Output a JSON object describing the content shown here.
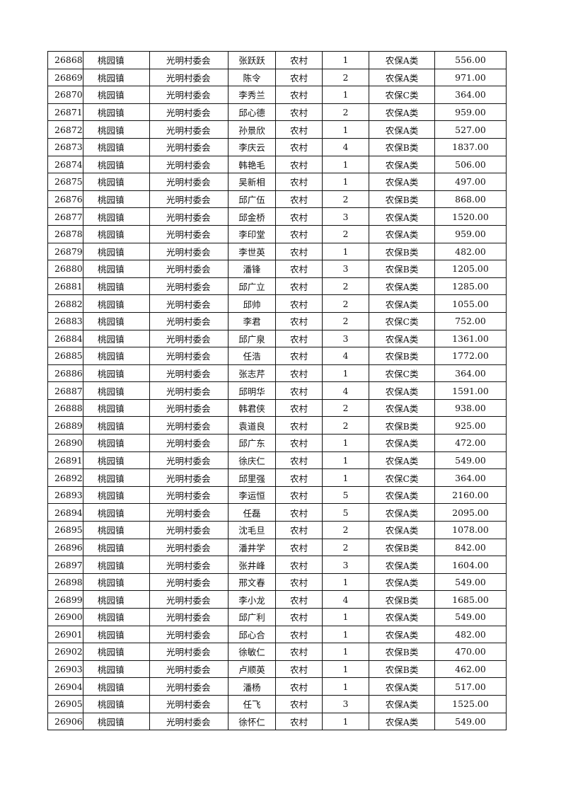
{
  "columns": [
    "id",
    "town",
    "committee",
    "name",
    "type",
    "persons",
    "category",
    "amount"
  ],
  "rows": [
    [
      "26868",
      "桃园镇",
      "光明村委会",
      "张跃跃",
      "农村",
      "1",
      "农保A类",
      "556.00"
    ],
    [
      "26869",
      "桃园镇",
      "光明村委会",
      "陈令",
      "农村",
      "2",
      "农保A类",
      "971.00"
    ],
    [
      "26870",
      "桃园镇",
      "光明村委会",
      "李秀兰",
      "农村",
      "1",
      "农保C类",
      "364.00"
    ],
    [
      "26871",
      "桃园镇",
      "光明村委会",
      "邱心德",
      "农村",
      "2",
      "农保A类",
      "959.00"
    ],
    [
      "26872",
      "桃园镇",
      "光明村委会",
      "孙景欣",
      "农村",
      "1",
      "农保A类",
      "527.00"
    ],
    [
      "26873",
      "桃园镇",
      "光明村委会",
      "李庆云",
      "农村",
      "4",
      "农保B类",
      "1837.00"
    ],
    [
      "26874",
      "桃园镇",
      "光明村委会",
      "韩艳毛",
      "农村",
      "1",
      "农保A类",
      "506.00"
    ],
    [
      "26875",
      "桃园镇",
      "光明村委会",
      "吴新相",
      "农村",
      "1",
      "农保A类",
      "497.00"
    ],
    [
      "26876",
      "桃园镇",
      "光明村委会",
      "邱广伍",
      "农村",
      "2",
      "农保B类",
      "868.00"
    ],
    [
      "26877",
      "桃园镇",
      "光明村委会",
      "邱金桥",
      "农村",
      "3",
      "农保A类",
      "1520.00"
    ],
    [
      "26878",
      "桃园镇",
      "光明村委会",
      "李印堂",
      "农村",
      "2",
      "农保A类",
      "959.00"
    ],
    [
      "26879",
      "桃园镇",
      "光明村委会",
      "李世英",
      "农村",
      "1",
      "农保B类",
      "482.00"
    ],
    [
      "26880",
      "桃园镇",
      "光明村委会",
      "潘锋",
      "农村",
      "3",
      "农保B类",
      "1205.00"
    ],
    [
      "26881",
      "桃园镇",
      "光明村委会",
      "邱广立",
      "农村",
      "2",
      "农保A类",
      "1285.00"
    ],
    [
      "26882",
      "桃园镇",
      "光明村委会",
      "邱帅",
      "农村",
      "2",
      "农保A类",
      "1055.00"
    ],
    [
      "26883",
      "桃园镇",
      "光明村委会",
      "李君",
      "农村",
      "2",
      "农保C类",
      "752.00"
    ],
    [
      "26884",
      "桃园镇",
      "光明村委会",
      "邱广泉",
      "农村",
      "3",
      "农保A类",
      "1361.00"
    ],
    [
      "26885",
      "桃园镇",
      "光明村委会",
      "任浩",
      "农村",
      "4",
      "农保B类",
      "1772.00"
    ],
    [
      "26886",
      "桃园镇",
      "光明村委会",
      "张志芹",
      "农村",
      "1",
      "农保C类",
      "364.00"
    ],
    [
      "26887",
      "桃园镇",
      "光明村委会",
      "邱明华",
      "农村",
      "4",
      "农保A类",
      "1591.00"
    ],
    [
      "26888",
      "桃园镇",
      "光明村委会",
      "韩君侠",
      "农村",
      "2",
      "农保A类",
      "938.00"
    ],
    [
      "26889",
      "桃园镇",
      "光明村委会",
      "袁道良",
      "农村",
      "2",
      "农保B类",
      "925.00"
    ],
    [
      "26890",
      "桃园镇",
      "光明村委会",
      "邱广东",
      "农村",
      "1",
      "农保A类",
      "472.00"
    ],
    [
      "26891",
      "桃园镇",
      "光明村委会",
      "徐庆仁",
      "农村",
      "1",
      "农保A类",
      "549.00"
    ],
    [
      "26892",
      "桃园镇",
      "光明村委会",
      "邱里强",
      "农村",
      "1",
      "农保C类",
      "364.00"
    ],
    [
      "26893",
      "桃园镇",
      "光明村委会",
      "李运恒",
      "农村",
      "5",
      "农保A类",
      "2160.00"
    ],
    [
      "26894",
      "桃园镇",
      "光明村委会",
      "任磊",
      "农村",
      "5",
      "农保A类",
      "2095.00"
    ],
    [
      "26895",
      "桃园镇",
      "光明村委会",
      "沈毛旦",
      "农村",
      "2",
      "农保A类",
      "1078.00"
    ],
    [
      "26896",
      "桃园镇",
      "光明村委会",
      "潘井学",
      "农村",
      "2",
      "农保B类",
      "842.00"
    ],
    [
      "26897",
      "桃园镇",
      "光明村委会",
      "张井峰",
      "农村",
      "3",
      "农保A类",
      "1604.00"
    ],
    [
      "26898",
      "桃园镇",
      "光明村委会",
      "邢文春",
      "农村",
      "1",
      "农保A类",
      "549.00"
    ],
    [
      "26899",
      "桃园镇",
      "光明村委会",
      "李小龙",
      "农村",
      "4",
      "农保B类",
      "1685.00"
    ],
    [
      "26900",
      "桃园镇",
      "光明村委会",
      "邱广利",
      "农村",
      "1",
      "农保A类",
      "549.00"
    ],
    [
      "26901",
      "桃园镇",
      "光明村委会",
      "邱心合",
      "农村",
      "1",
      "农保A类",
      "482.00"
    ],
    [
      "26902",
      "桃园镇",
      "光明村委会",
      "徐敏仁",
      "农村",
      "1",
      "农保B类",
      "470.00"
    ],
    [
      "26903",
      "桃园镇",
      "光明村委会",
      "卢顺英",
      "农村",
      "1",
      "农保B类",
      "462.00"
    ],
    [
      "26904",
      "桃园镇",
      "光明村委会",
      "潘杨",
      "农村",
      "1",
      "农保A类",
      "517.00"
    ],
    [
      "26905",
      "桃园镇",
      "光明村委会",
      "任飞",
      "农村",
      "3",
      "农保A类",
      "1525.00"
    ],
    [
      "26906",
      "桃园镇",
      "光明村委会",
      "徐怀仁",
      "农村",
      "1",
      "农保A类",
      "549.00"
    ]
  ]
}
